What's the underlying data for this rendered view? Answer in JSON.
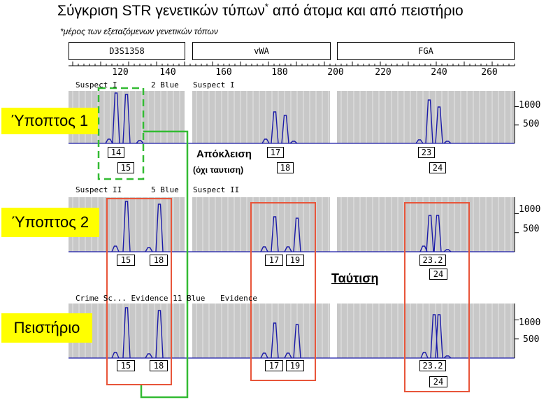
{
  "title": "Σύγκριση STR γενετικών τύπων",
  "title_sup": "*",
  "title_rest": " από άτομα και από πειστήριο",
  "subtitle": "*μέρος των εξεταζόμενων γενετικών τόπων",
  "loci": [
    "D3S1358",
    "vWA",
    "FGA"
  ],
  "axis_ticks": [
    "120",
    "140",
    "160",
    "180",
    "200",
    "220",
    "240",
    "260"
  ],
  "rows": [
    {
      "label": "Ύποπτος 1",
      "top_left": "Suspect I",
      "top_mid": "2 Blue",
      "top_right": "Suspect I",
      "alleles": [
        [
          "14",
          "15"
        ],
        [
          "17",
          "18"
        ],
        [
          "23",
          "24"
        ]
      ]
    },
    {
      "label": "Ύποπτος 2",
      "top_left": "Suspect II",
      "top_mid": "5 Blue",
      "top_right": "Suspect II",
      "alleles": [
        [
          "15",
          "18"
        ],
        [
          "17",
          "19"
        ],
        [
          "23.2",
          "24"
        ]
      ]
    },
    {
      "label": "Πειστήριο",
      "top_left": "Crime Sc... Evidence 11 Blue",
      "top_mid": "",
      "top_right": "Evidence",
      "alleles": [
        [
          "15",
          "18"
        ],
        [
          "17",
          "19"
        ],
        [
          "23.2",
          "24"
        ]
      ]
    }
  ],
  "rfu_labels": [
    "1000",
    "500"
  ],
  "exclusion": "Απόκλειση",
  "exclusion_note": "(όχι ταυτιση)",
  "match": "Ταύτιση",
  "colors": {
    "label_bg": "#ffff00",
    "peak": "#1a1aa8",
    "panel": "#c8c8c8",
    "exclusion_line": "#33bb33",
    "match_box": "#e8553a"
  }
}
